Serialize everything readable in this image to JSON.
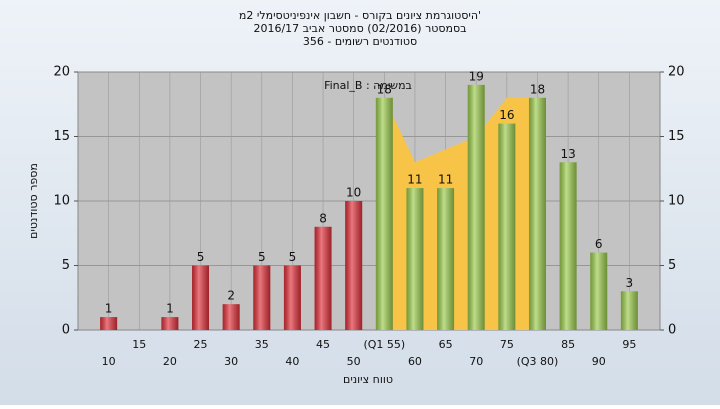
{
  "chart_data": {
    "type": "bar",
    "title": [
      "'היסטוגרמת ציונים בקורס - חשבון אינפיניטסימלי 2מ",
      "בסמסטר  (02/2016)  סמסטר אביב 2016/17",
      "סטודנטים רשומים - 356"
    ],
    "annotation": "Final_B : במשימה",
    "x_label": "טווח ציונים",
    "y_label": "מספר סטודנטים",
    "categories": [
      "10",
      "15",
      "20",
      "25",
      "30",
      "35",
      "40",
      "45",
      "50",
      "(Q1 55)",
      "60",
      "65",
      "70",
      "75",
      "(Q3 80)",
      "85",
      "90",
      "95"
    ],
    "values": [
      1,
      null,
      1,
      5,
      2,
      5,
      5,
      8,
      10,
      18,
      11,
      11,
      19,
      16,
      18,
      13,
      6,
      3
    ],
    "colors": [
      "#e0303a",
      "#e0303a",
      "#e0303a",
      "#e0303a",
      "#e0303a",
      "#e0303a",
      "#e0303a",
      "#e0303a",
      "#e0303a",
      "#9ccc4e",
      "#9ccc4e",
      "#9ccc4e",
      "#9ccc4e",
      "#9ccc4e",
      "#9ccc4e",
      "#9ccc4e",
      "#9ccc4e",
      "#9ccc4e"
    ],
    "highlight": {
      "color": "#f8c447",
      "values": [
        null,
        null,
        null,
        null,
        null,
        null,
        null,
        null,
        null,
        18,
        13,
        14,
        15,
        18,
        18,
        null,
        null,
        null
      ]
    },
    "ylim": [
      0,
      20
    ],
    "yticks": [
      0,
      5,
      10,
      15,
      20
    ],
    "y2lim": [
      0,
      20
    ],
    "y2ticks": [
      0,
      5,
      10,
      15,
      20
    ],
    "grid": true
  }
}
